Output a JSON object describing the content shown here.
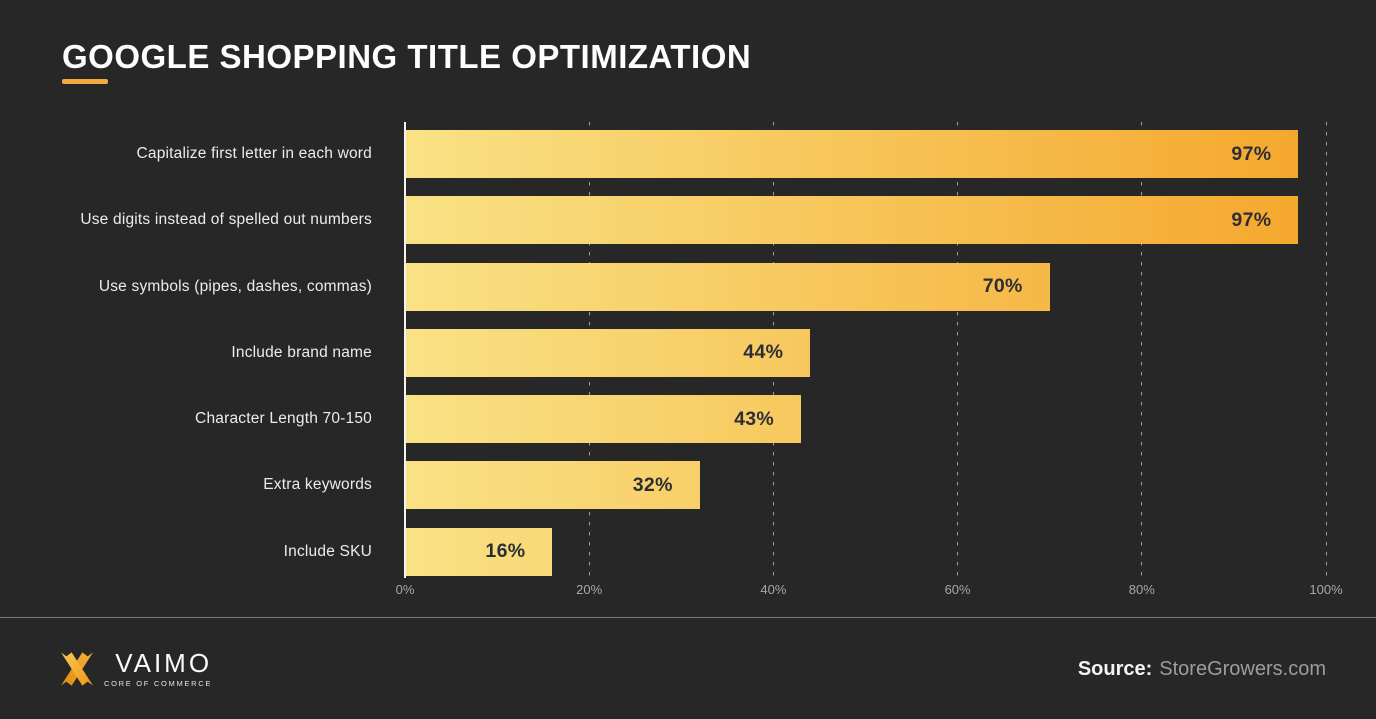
{
  "title": "GOOGLE SHOPPING TITLE OPTIMIZATION",
  "colors": {
    "background": "#272728",
    "accent_dash": "#f2aa3c",
    "bar_gradient_start": "#f9e285",
    "bar_gradient_end": "#f5a62b",
    "axis_line": "#f4f4f4",
    "value_label": "#2d2e35",
    "category_label": "#ececec",
    "tick_label": "#a7a7a7",
    "logo_orange_light": "#f9bd4a",
    "logo_orange_dark": "#e18f10"
  },
  "chart_data": {
    "type": "bar",
    "orientation": "horizontal",
    "title": "GOOGLE SHOPPING TITLE OPTIMIZATION",
    "categories": [
      "Capitalize first letter in each word",
      "Use digits instead of spelled out numbers",
      "Use symbols (pipes, dashes, commas)",
      "Include brand name",
      "Character Length 70-150",
      "Extra keywords",
      "Include SKU"
    ],
    "values": [
      97,
      97,
      70,
      44,
      43,
      32,
      16
    ],
    "value_labels": [
      "97%",
      "97%",
      "70%",
      "44%",
      "43%",
      "32%",
      "16%"
    ],
    "xlabel": "",
    "ylabel": "",
    "xlim": [
      0,
      100
    ],
    "x_ticks": [
      {
        "value": 0,
        "label": "0%"
      },
      {
        "value": 20,
        "label": "20%"
      },
      {
        "value": 40,
        "label": "40%"
      },
      {
        "value": 60,
        "label": "60%"
      },
      {
        "value": 80,
        "label": "80%"
      },
      {
        "value": 100,
        "label": "100%"
      }
    ],
    "grid": "dashed-vertical",
    "legend": "none"
  },
  "footer": {
    "logo_text": "VAIMO",
    "logo_tagline": "CORE OF COMMERCE",
    "source_label": "Source:",
    "source_value": "StoreGrowers.com"
  }
}
